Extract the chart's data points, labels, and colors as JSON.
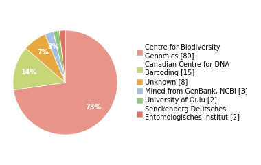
{
  "labels": [
    "Centre for Biodiversity\nGenomics [80]",
    "Canadian Centre for DNA\nBarcoding [15]",
    "Unknown [8]",
    "Mined from GenBank, NCBI [3]",
    "University of Oulu [2]",
    "Senckenberg Deutsches\nEntomologisches Institut [2]"
  ],
  "values": [
    80,
    15,
    8,
    3,
    2,
    2
  ],
  "colors": [
    "#e8958a",
    "#c8d478",
    "#e8a840",
    "#a8c0e0",
    "#90c878",
    "#e07060"
  ],
  "startangle": 90,
  "background_color": "#ffffff",
  "fontsize": 7.0,
  "legend_fontsize": 7.0
}
